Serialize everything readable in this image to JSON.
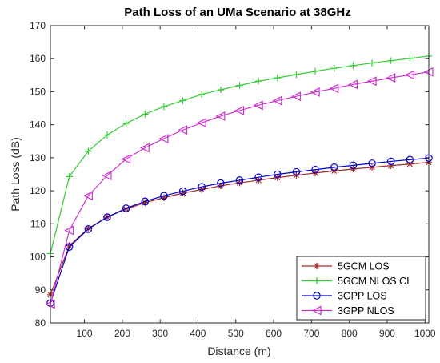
{
  "chart_data": {
    "type": "line",
    "title": "Path Loss of an UMa Scenario at 38GHz",
    "xlabel": "Distance (m)",
    "ylabel": "Path Loss (dB)",
    "xlim": [
      10,
      1010
    ],
    "ylim": [
      80,
      170
    ],
    "xticks": [
      100,
      200,
      300,
      400,
      500,
      600,
      700,
      800,
      900,
      1000
    ],
    "yticks": [
      80,
      90,
      100,
      110,
      120,
      130,
      140,
      150,
      160,
      170
    ],
    "grid": false,
    "legend_position": "bottom-right",
    "x": [
      10,
      60,
      110,
      160,
      210,
      260,
      310,
      360,
      410,
      460,
      510,
      560,
      610,
      660,
      710,
      760,
      810,
      860,
      910,
      960,
      1010
    ],
    "series": [
      {
        "name": "5GCM LOS",
        "color": "#a52a2a",
        "marker": "asterisk",
        "values": [
          88.5,
          103.4,
          108.6,
          112.0,
          114.5,
          116.4,
          117.9,
          119.3,
          120.4,
          121.5,
          122.4,
          123.2,
          124.0,
          124.7,
          125.4,
          126.0,
          126.6,
          127.1,
          127.6,
          128.1,
          128.6
        ]
      },
      {
        "name": "5GCM NLOS CI",
        "color": "#33cc33",
        "marker": "plus",
        "values": [
          101.0,
          124.3,
          132.0,
          136.9,
          140.4,
          143.2,
          145.5,
          147.3,
          149.2,
          150.6,
          151.9,
          153.2,
          154.2,
          155.2,
          156.2,
          157.1,
          157.9,
          158.7,
          159.4,
          160.1,
          160.8
        ]
      },
      {
        "name": "3GPP LOS",
        "color": "#0000cc",
        "marker": "circle",
        "values": [
          86.0,
          103.0,
          108.4,
          112.0,
          114.7,
          116.8,
          118.5,
          119.9,
          121.2,
          122.3,
          123.2,
          124.1,
          125.0,
          125.7,
          126.4,
          127.1,
          127.7,
          128.3,
          128.9,
          129.4,
          129.9
        ]
      },
      {
        "name": "3GPP NLOS",
        "color": "#cc33cc",
        "marker": "triangle-left",
        "values": [
          85.7,
          108.0,
          118.5,
          124.6,
          129.6,
          133.0,
          135.8,
          138.4,
          140.6,
          142.6,
          144.3,
          145.9,
          147.3,
          148.6,
          149.9,
          151.0,
          152.2,
          153.2,
          154.2,
          155.1,
          156.0
        ]
      }
    ]
  }
}
